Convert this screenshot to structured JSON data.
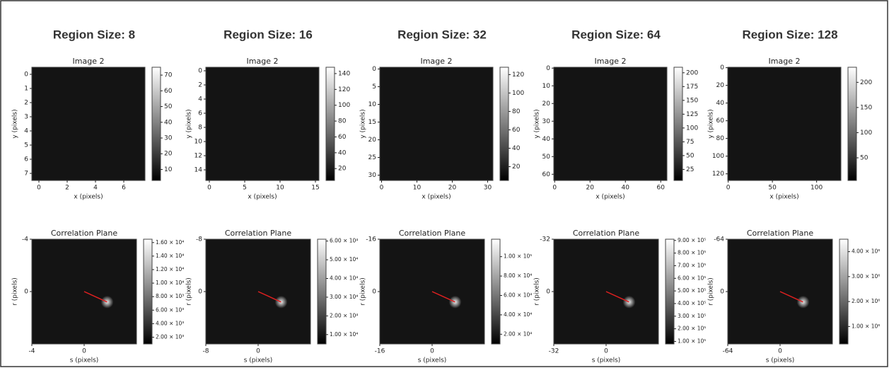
{
  "panels": [
    {
      "title": "Region Size: 8",
      "image": {
        "title": "Image 2",
        "xlabel": "x (pixels)",
        "ylabel": "y (pixels)",
        "xlim": [
          -0.5,
          7.5
        ],
        "ylim": [
          -0.5,
          7.5
        ],
        "xticks": [
          0,
          2,
          4,
          6
        ],
        "yticks": [
          0,
          1,
          2,
          3,
          4,
          5,
          6,
          7
        ],
        "clim": [
          3,
          75
        ],
        "cticks": [
          10,
          20,
          30,
          40,
          50,
          60,
          70
        ]
      },
      "correlation": {
        "title": "Correlation Plane",
        "xlabel": "s (pixels)",
        "ylabel": "r (pixels)",
        "xlim": [
          -4,
          4
        ],
        "ylim": [
          -4,
          4
        ],
        "xticks": [
          -4,
          0
        ],
        "yticks": [
          -4,
          0
        ],
        "clim": [
          1000,
          16500
        ],
        "cticks": [
          {
            "value": 2000,
            "label": "2.00 × 10³"
          },
          {
            "value": 4000,
            "label": "4.00 × 10³"
          },
          {
            "value": 6000,
            "label": "6.00 × 10³"
          },
          {
            "value": 8000,
            "label": "8.00 × 10³"
          },
          {
            "value": 10000,
            "label": "1.00 × 10⁴"
          },
          {
            "value": 12000,
            "label": "1.20 × 10⁴"
          },
          {
            "value": 14000,
            "label": "1.40 × 10⁴"
          },
          {
            "value": 16000,
            "label": "1.60 × 10⁴"
          }
        ]
      }
    },
    {
      "title": "Region Size: 16",
      "image": {
        "title": "Image 2",
        "xlabel": "x (pixels)",
        "ylabel": "y (pixels)",
        "xlim": [
          -0.5,
          15.5
        ],
        "ylim": [
          -0.5,
          15.5
        ],
        "xticks": [
          0,
          5,
          10,
          15
        ],
        "yticks": [
          0,
          2,
          4,
          6,
          8,
          10,
          12,
          14
        ],
        "clim": [
          5,
          148
        ],
        "cticks": [
          20,
          40,
          60,
          80,
          100,
          120,
          140
        ]
      },
      "correlation": {
        "title": "Correlation Plane",
        "xlabel": "s (pixels)",
        "ylabel": "r (pixels)",
        "xlim": [
          -8,
          8
        ],
        "ylim": [
          -8,
          8
        ],
        "xticks": [
          -8,
          0
        ],
        "yticks": [
          -8,
          0
        ],
        "clim": [
          5000,
          61000
        ],
        "cticks": [
          {
            "value": 10000,
            "label": "1.00 × 10⁴"
          },
          {
            "value": 20000,
            "label": "2.00 × 10⁴"
          },
          {
            "value": 30000,
            "label": "3.00 × 10⁴"
          },
          {
            "value": 40000,
            "label": "4.00 × 10⁴"
          },
          {
            "value": 50000,
            "label": "5.00 × 10⁴"
          },
          {
            "value": 60000,
            "label": "6.00 × 10⁴"
          }
        ]
      }
    },
    {
      "title": "Region Size: 32",
      "image": {
        "title": "Image 2",
        "xlabel": "x (pixels)",
        "ylabel": "y (pixels)",
        "xlim": [
          -0.5,
          31.5
        ],
        "ylim": [
          -0.5,
          31.5
        ],
        "xticks": [
          0,
          10,
          20,
          30
        ],
        "yticks": [
          0,
          5,
          10,
          15,
          20,
          25,
          30
        ],
        "clim": [
          5,
          128
        ],
        "cticks": [
          20,
          40,
          60,
          80,
          100,
          120
        ]
      },
      "correlation": {
        "title": "Correlation Plane",
        "xlabel": "s (pixels)",
        "ylabel": "r (pixels)",
        "xlim": [
          -16,
          16
        ],
        "ylim": [
          -16,
          16
        ],
        "xticks": [
          -16,
          0
        ],
        "yticks": [
          -16,
          0
        ],
        "clim": [
          10000,
          118000
        ],
        "cticks": [
          {
            "value": 20000,
            "label": "2.00 × 10⁴"
          },
          {
            "value": 40000,
            "label": "4.00 × 10⁴"
          },
          {
            "value": 60000,
            "label": "6.00 × 10⁴"
          },
          {
            "value": 80000,
            "label": "8.00 × 10⁴"
          },
          {
            "value": 100000,
            "label": "1.00 × 10⁵"
          }
        ]
      }
    },
    {
      "title": "Region Size: 64",
      "image": {
        "title": "Image 2",
        "xlabel": "x (pixels)",
        "ylabel": "y (pixels)",
        "xlim": [
          -0.5,
          63.5
        ],
        "ylim": [
          -0.5,
          63.5
        ],
        "xticks": [
          0,
          20,
          40,
          60
        ],
        "yticks": [
          0,
          10,
          20,
          30,
          40,
          50,
          60
        ],
        "clim": [
          5,
          210
        ],
        "cticks": [
          25,
          50,
          75,
          100,
          125,
          150,
          175,
          200
        ]
      },
      "correlation": {
        "title": "Correlation Plane",
        "xlabel": "s (pixels)",
        "ylabel": "r (pixels)",
        "xlim": [
          -32,
          32
        ],
        "ylim": [
          -32,
          32
        ],
        "xticks": [
          -32,
          0
        ],
        "yticks": [
          -32,
          0
        ],
        "clim": [
          80000,
          910000
        ],
        "cticks": [
          {
            "value": 100000,
            "label": "1.00 × 10⁵"
          },
          {
            "value": 200000,
            "label": "2.00 × 10⁵"
          },
          {
            "value": 300000,
            "label": "3.00 × 10⁵"
          },
          {
            "value": 400000,
            "label": "4.00 × 10⁵"
          },
          {
            "value": 500000,
            "label": "5.00 × 10⁵"
          },
          {
            "value": 600000,
            "label": "6.00 × 10⁵"
          },
          {
            "value": 700000,
            "label": "7.00 × 10⁵"
          },
          {
            "value": 800000,
            "label": "8.00 × 10⁵"
          },
          {
            "value": 900000,
            "label": "9.00 × 10⁵"
          }
        ]
      }
    },
    {
      "title": "Region Size: 128",
      "image": {
        "title": "Image 2",
        "xlabel": "x (pixels)",
        "ylabel": "y (pixels)",
        "xlim": [
          -0.5,
          127.5
        ],
        "ylim": [
          -0.5,
          127.5
        ],
        "xticks": [
          0,
          50,
          100
        ],
        "yticks": [
          0,
          20,
          40,
          60,
          80,
          100,
          120
        ],
        "clim": [
          5,
          230
        ],
        "cticks": [
          50,
          100,
          150,
          200
        ]
      },
      "correlation": {
        "title": "Correlation Plane",
        "xlabel": "s (pixels)",
        "ylabel": "r (pixels)",
        "xlim": [
          -64,
          64
        ],
        "ylim": [
          -64,
          64
        ],
        "xticks": [
          -64,
          0
        ],
        "yticks": [
          -64,
          0
        ],
        "clim": [
          300000,
          4500000
        ],
        "cticks": [
          {
            "value": 1000000,
            "label": "1.00 × 10⁶"
          },
          {
            "value": 2000000,
            "label": "2.00 × 10⁶"
          },
          {
            "value": 3000000,
            "label": "3.00 × 10⁶"
          },
          {
            "value": 4000000,
            "label": "4.00 × 10⁶"
          }
        ]
      }
    }
  ]
}
